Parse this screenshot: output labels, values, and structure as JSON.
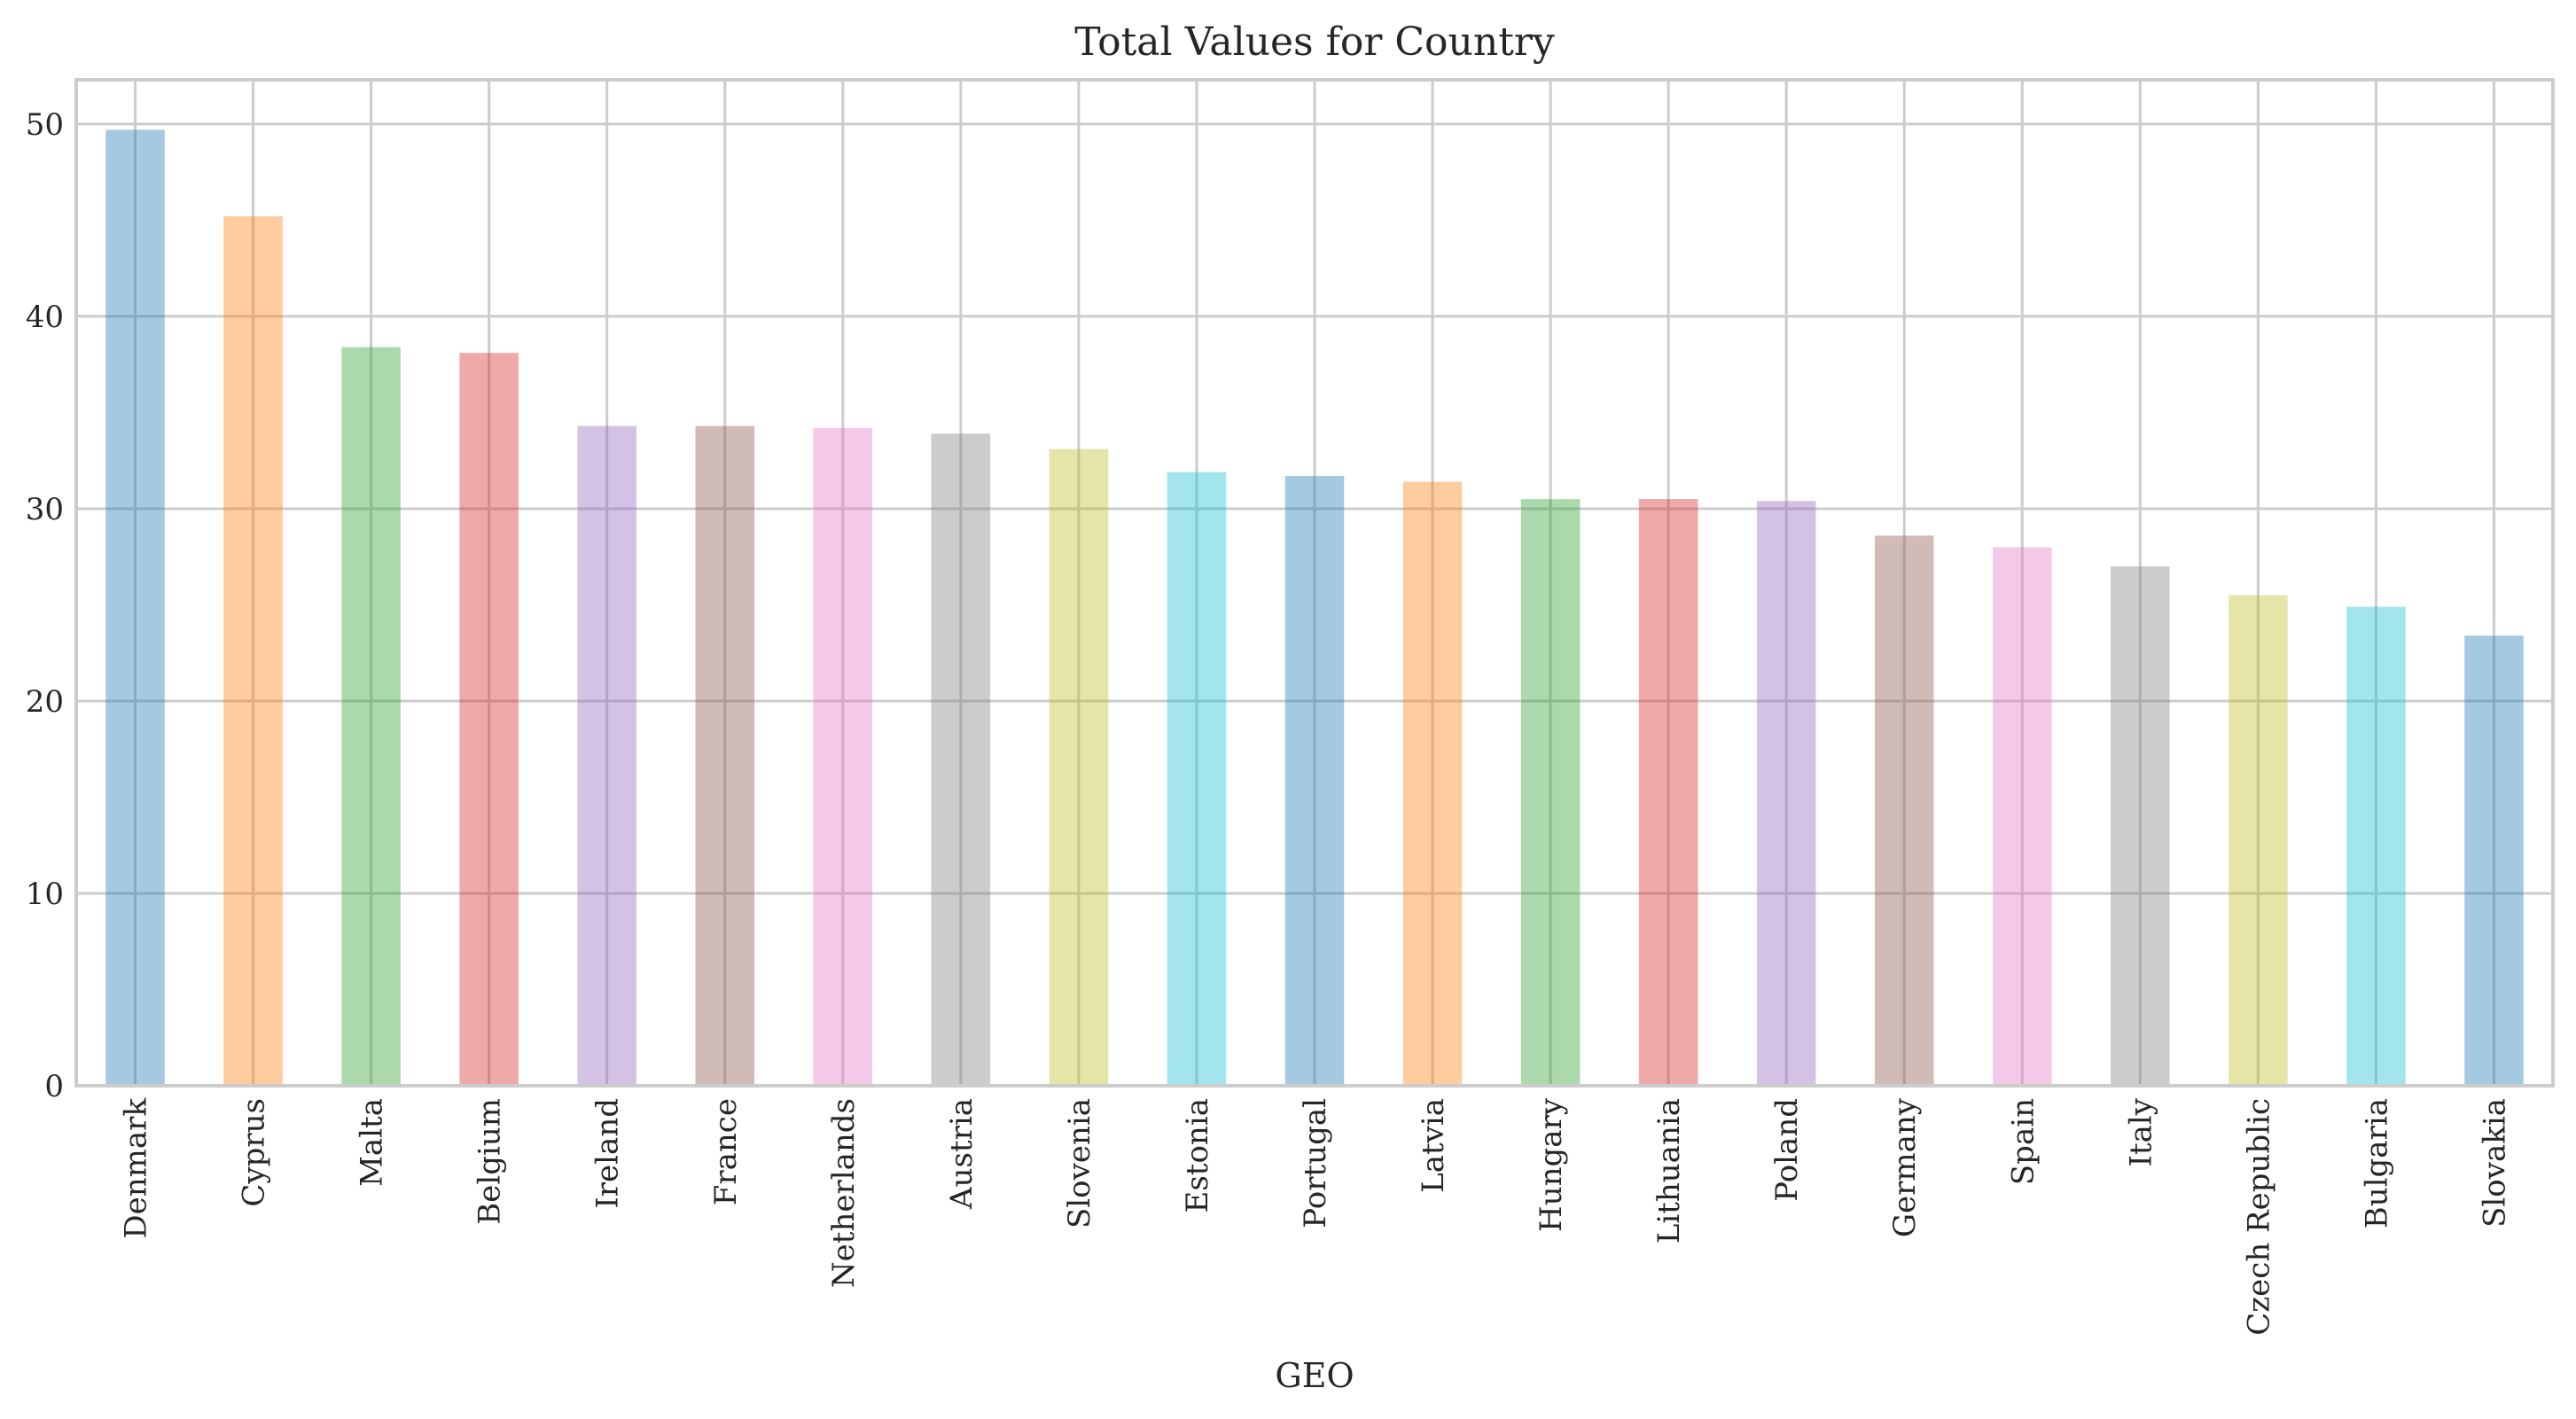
{
  "chart_data": {
    "type": "bar",
    "title": "Total Values for Country",
    "xlabel": "GEO",
    "ylabel": "",
    "ylim": [
      0,
      52.3
    ],
    "yticks": [
      0,
      10,
      20,
      30,
      40,
      50
    ],
    "grid": true,
    "legend": "none",
    "categories": [
      "Denmark",
      "Cyprus",
      "Malta",
      "Belgium",
      "Ireland",
      "France",
      "Netherlands",
      "Austria",
      "Slovenia",
      "Estonia",
      "Portugal",
      "Latvia",
      "Hungary",
      "Lithuania",
      "Poland",
      "Germany",
      "Spain",
      "Italy",
      "Czech Republic",
      "Bulgaria",
      "Slovakia"
    ],
    "values": [
      49.7,
      45.2,
      38.4,
      38.1,
      34.3,
      34.3,
      34.2,
      33.9,
      33.1,
      31.9,
      31.7,
      31.4,
      30.5,
      30.5,
      30.4,
      28.6,
      28.0,
      27.0,
      25.5,
      24.9,
      23.4
    ],
    "colors": [
      "#1f77b4",
      "#ff7f0e",
      "#2ca02c",
      "#d62728",
      "#9467bd",
      "#8c564b",
      "#e377c2",
      "#7f7f7f",
      "#bcbd22",
      "#17becf"
    ]
  }
}
